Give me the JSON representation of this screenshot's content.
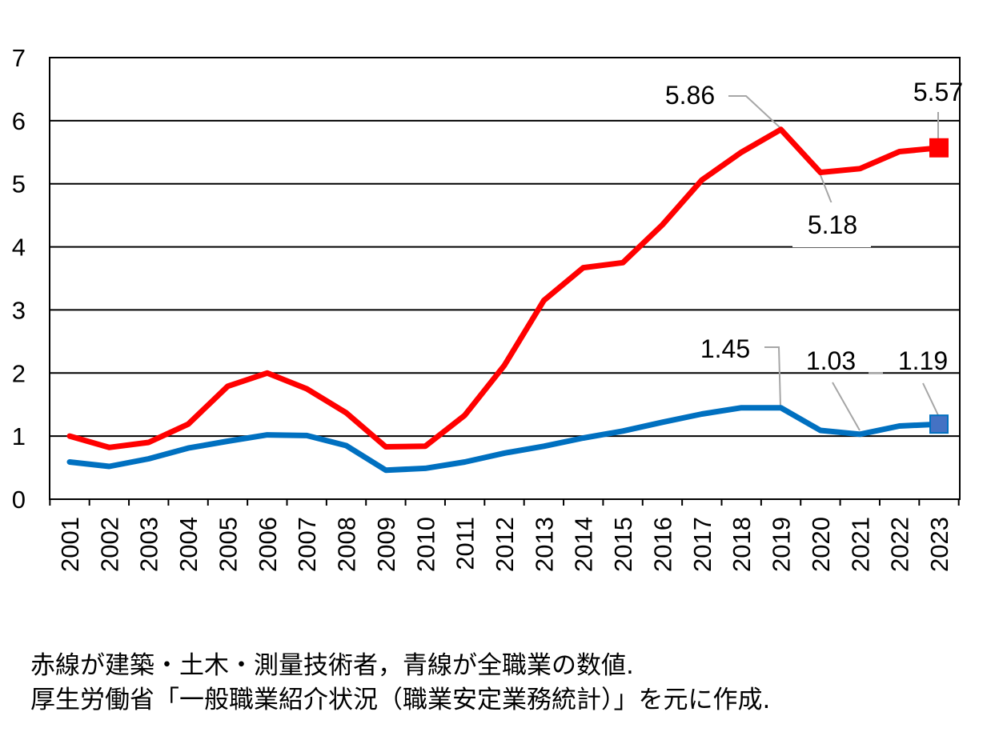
{
  "chart_data": {
    "type": "line",
    "title": "",
    "xlabel": "",
    "ylabel": "",
    "categories": [
      "2001",
      "2002",
      "2003",
      "2004",
      "2005",
      "2006",
      "2007",
      "2008",
      "2009",
      "2010",
      "2011",
      "2012",
      "2013",
      "2014",
      "2015",
      "2016",
      "2017",
      "2018",
      "2019",
      "2020",
      "2021",
      "2022",
      "2023"
    ],
    "ylim": [
      0,
      7
    ],
    "yticks": [
      "0",
      "1",
      "2",
      "3",
      "4",
      "5",
      "6",
      "7"
    ],
    "grid": true,
    "series": [
      {
        "color": "#ff0000",
        "marker": "square",
        "values": [
          1.0,
          0.82,
          0.9,
          1.19,
          1.79,
          2.0,
          1.75,
          1.37,
          0.83,
          0.84,
          1.33,
          2.12,
          3.15,
          3.67,
          3.75,
          4.35,
          5.06,
          5.5,
          5.86,
          5.18,
          5.24,
          5.51,
          5.57
        ]
      },
      {
        "color": "#0070c0",
        "marker_color": "#4472c4",
        "marker": "square",
        "values": [
          0.59,
          0.52,
          0.64,
          0.81,
          0.92,
          1.02,
          1.01,
          0.85,
          0.46,
          0.49,
          0.59,
          0.73,
          0.84,
          0.97,
          1.08,
          1.22,
          1.35,
          1.45,
          1.45,
          1.09,
          1.03,
          1.16,
          1.19
        ]
      }
    ],
    "annotations": [
      {
        "text": "5.86",
        "series": 0,
        "index": 18
      },
      {
        "text": "5.18",
        "series": 0,
        "index": 19
      },
      {
        "text": "5.57",
        "series": 0,
        "index": 22
      },
      {
        "text": "1.45",
        "series": 1,
        "index": 18
      },
      {
        "text": "1.03",
        "series": 1,
        "index": 20
      },
      {
        "text": "1.19",
        "series": 1,
        "index": 22
      }
    ]
  },
  "caption": {
    "line1": "赤線が建築・土木・測量技術者，青線が全職業の数値.",
    "line2": "厚生労働省「一般職業紹介状況（職業安定業務統計）」を元に作成."
  }
}
